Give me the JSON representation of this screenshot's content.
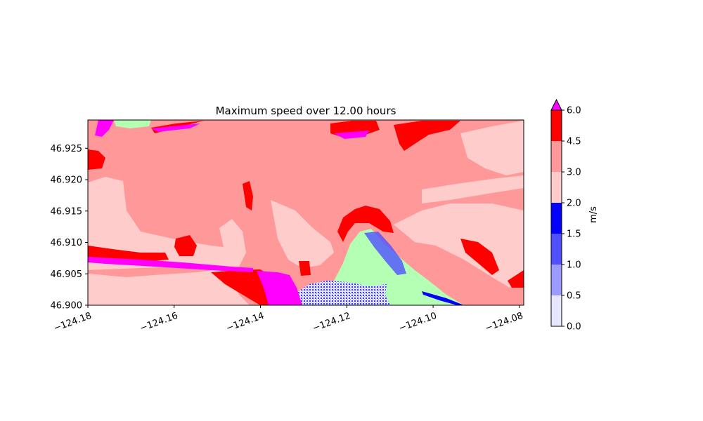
{
  "chart_data": {
    "type": "heatmap",
    "title": "Maximum speed over 12.00 hours",
    "xlabel": "",
    "ylabel": "",
    "xlim": [
      -124.18,
      -124.079
    ],
    "ylim": [
      46.9,
      46.9295
    ],
    "x_ticks": [
      "−124.18",
      "−124.16",
      "−124.14",
      "−124.12",
      "−124.10",
      "−124.08"
    ],
    "x_tick_values": [
      -124.18,
      -124.16,
      -124.14,
      -124.12,
      -124.1,
      -124.08
    ],
    "y_ticks": [
      "46.900",
      "46.905",
      "46.910",
      "46.915",
      "46.920",
      "46.925"
    ],
    "y_tick_values": [
      46.9,
      46.905,
      46.91,
      46.915,
      46.92,
      46.925
    ],
    "colorbar": {
      "label": "m/s",
      "levels": [
        0.0,
        0.5,
        1.0,
        1.5,
        2.0,
        3.0,
        4.5,
        6.0
      ],
      "tick_labels": [
        "0.0",
        "0.5",
        "1.0",
        "1.5",
        "2.0",
        "3.0",
        "4.5",
        "6.0"
      ],
      "colors": [
        "#e6e6ff",
        "#9b9bff",
        "#5050ff",
        "#0000ff",
        "#ffcccc",
        "#ff9999",
        "#ff0000"
      ],
      "over_color": "#ff00ff",
      "extend": "max"
    },
    "land_color": "#b3ffb3"
  }
}
